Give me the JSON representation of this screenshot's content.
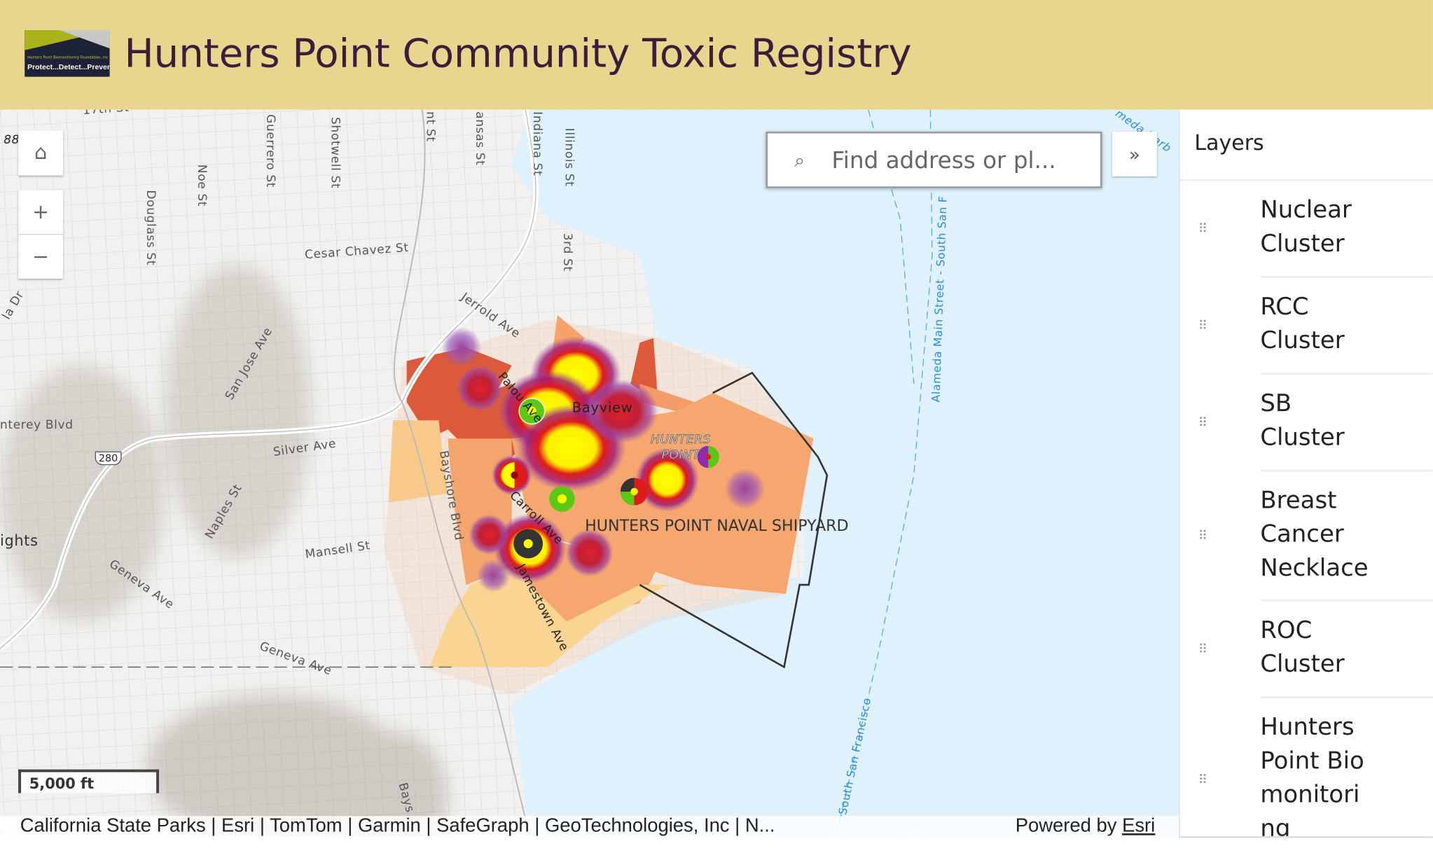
{
  "header": {
    "title": "Hunters Point Community Toxic Registry",
    "logo_text": [
      "Hunters Point Biomonitoring Foundation, Inc",
      "Protect...Detect...Prevent!"
    ]
  },
  "map": {
    "controls": {
      "home_icon": "home-icon",
      "zoom_in": "+",
      "zoom_out": "−"
    },
    "search": {
      "placeholder": "Find address or pl...",
      "icon": "search-icon"
    },
    "collapse_label": "»",
    "scale_bar": "5,000 ft",
    "labels": {
      "s17": "17th St",
      "i88": "88",
      "guerrero": "Guerrero St",
      "shotwell": "Shotwell St",
      "noe": "Noe St",
      "douglass": "Douglass St",
      "cesar": "Cesar Chavez St",
      "kansas": "ansas St",
      "indiana": "Indiana St",
      "illinois": "Illinois St",
      "third": "3rd St",
      "nt": "nt St",
      "jerrold": "Jerrold Ave",
      "palou": "Palou Ave",
      "bayview": "Bayview",
      "hunters_point": "HUNTERS POINT",
      "shipyard": "HUNTERS POINT NAVAL SHIPYARD",
      "carroll": "Carroll Ave",
      "jamestown": "Jamestown Ave",
      "bayshore": "Bayshore Blvd",
      "silver": "Silver Ave",
      "mansell": "Mansell St",
      "geneva1": "Geneva Ave",
      "geneva2": "Geneva Ave",
      "naples": "Naples St",
      "sanjose": "San Jose Ave",
      "monterey": "nterey Blvd",
      "heights": "ights",
      "i280": "280",
      "alameda_main": "Alameda Main Street - South San F",
      "south_sf": "South San Francisco",
      "alameda_harb": "meda Harb",
      "bays": "Bays",
      "la_dr": "la Dr"
    },
    "attribution": "California State Parks | Esri | TomTom | Garmin | SafeGraph | GeoTechnologies, Inc | N...",
    "powered_by": "Powered by",
    "esri_link": "Esri"
  },
  "panel": {
    "title": "Layers",
    "items": [
      {
        "label": "Nuclear Cluster"
      },
      {
        "label": "RCC Cluster"
      },
      {
        "label": "SB Cluster"
      },
      {
        "label": "Breast Cancer Necklace"
      },
      {
        "label": "ROC Cluster"
      },
      {
        "label": "Hunters Point Biomonitoring"
      }
    ]
  }
}
